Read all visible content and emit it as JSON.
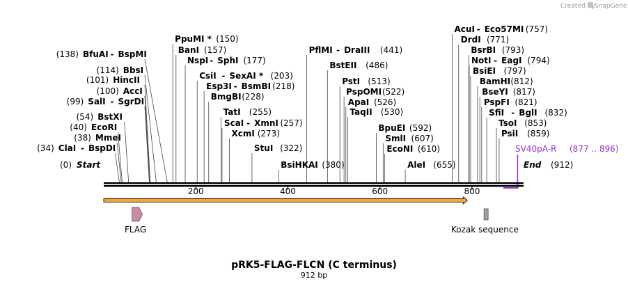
{
  "credit": {
    "prefix": "Created by",
    "brand": "SnapGene"
  },
  "map": {
    "title": "pRK5-FLAG-FLCN (C terminus)",
    "length_label": "912 bp",
    "length": 912,
    "scale_ticks": [
      {
        "pos": 200,
        "label": "200"
      },
      {
        "pos": 400,
        "label": "400"
      },
      {
        "pos": 600,
        "label": "600"
      },
      {
        "pos": 800,
        "label": "800"
      }
    ]
  },
  "ends": {
    "start": {
      "pos_text": "(0)",
      "name": "Start"
    },
    "end": {
      "pos_text": "(912)",
      "name": "End"
    }
  },
  "primer": {
    "name": "SV40pA-R",
    "range_text": "(877 .. 896)",
    "color": "#9933cc",
    "start": 877,
    "end": 896
  },
  "orf": {
    "start": 0,
    "end": 790,
    "fill": "#f2a930"
  },
  "features": [
    {
      "name": "FLAG",
      "start": 57,
      "end": 81,
      "color": "#c98c9e"
    },
    {
      "name": "Kozak sequence",
      "start": 823,
      "end": 833,
      "color": "#9aa4ab"
    }
  ],
  "enzymes": [
    {
      "pos": 34,
      "pos_text": "(34)",
      "names": [
        "ClaI",
        "BspDI"
      ],
      "side": "left"
    },
    {
      "pos": 38,
      "pos_text": "(38)",
      "names": [
        "MmeI"
      ],
      "side": "left"
    },
    {
      "pos": 40,
      "pos_text": "(40)",
      "names": [
        "EcoRI"
      ],
      "side": "left"
    },
    {
      "pos": 54,
      "pos_text": "(54)",
      "names": [
        "BstXI"
      ],
      "side": "left"
    },
    {
      "pos": 99,
      "pos_text": "(99)",
      "names": [
        "SalI",
        "SgrDI"
      ],
      "side": "left"
    },
    {
      "pos": 100,
      "pos_text": "(100)",
      "names": [
        "AccI"
      ],
      "side": "left"
    },
    {
      "pos": 101,
      "pos_text": "(101)",
      "names": [
        "HincII"
      ],
      "side": "left"
    },
    {
      "pos": 114,
      "pos_text": "(114)",
      "names": [
        "BbsI"
      ],
      "side": "left"
    },
    {
      "pos": 138,
      "pos_text": "(138)",
      "names": [
        "BfuAI",
        "BspMI"
      ],
      "side": "left"
    },
    {
      "pos": 150,
      "pos_text": "(150)",
      "names": [
        "PpuMI *"
      ],
      "side": "right"
    },
    {
      "pos": 157,
      "pos_text": "(157)",
      "names": [
        "BanI"
      ],
      "side": "right"
    },
    {
      "pos": 177,
      "pos_text": "(177)",
      "names": [
        "NspI",
        "SphI"
      ],
      "side": "right"
    },
    {
      "pos": 203,
      "pos_text": "(203)",
      "names": [
        "CsiI",
        "SexAI *"
      ],
      "side": "right"
    },
    {
      "pos": 218,
      "pos_text": "(218)",
      "names": [
        "Esp3I",
        "BsmBI"
      ],
      "side": "right"
    },
    {
      "pos": 228,
      "pos_text": "(228)",
      "names": [
        "BmgBI"
      ],
      "side": "right"
    },
    {
      "pos": 255,
      "pos_text": "(255)",
      "names": [
        "TatI"
      ],
      "side": "right"
    },
    {
      "pos": 257,
      "pos_text": "(257)",
      "names": [
        "ScaI",
        "XmnI"
      ],
      "side": "right"
    },
    {
      "pos": 273,
      "pos_text": "(273)",
      "names": [
        "XcmI"
      ],
      "side": "right"
    },
    {
      "pos": 322,
      "pos_text": "(322)",
      "names": [
        "StuI"
      ],
      "side": "right"
    },
    {
      "pos": 380,
      "pos_text": "(380)",
      "names": [
        "BsiHKAI"
      ],
      "side": "right"
    },
    {
      "pos": 441,
      "pos_text": "(441)",
      "names": [
        "PflMI",
        "DraIII"
      ],
      "side": "right"
    },
    {
      "pos": 486,
      "pos_text": "(486)",
      "names": [
        "BstEII"
      ],
      "side": "right"
    },
    {
      "pos": 513,
      "pos_text": "(513)",
      "names": [
        "PstI"
      ],
      "side": "right"
    },
    {
      "pos": 522,
      "pos_text": "(522)",
      "names": [
        "PspOMI"
      ],
      "side": "right"
    },
    {
      "pos": 526,
      "pos_text": "(526)",
      "names": [
        "ApaI"
      ],
      "side": "right"
    },
    {
      "pos": 530,
      "pos_text": "(530)",
      "names": [
        "TaqII"
      ],
      "side": "right"
    },
    {
      "pos": 592,
      "pos_text": "(592)",
      "names": [
        "BpuEI"
      ],
      "side": "right"
    },
    {
      "pos": 607,
      "pos_text": "(607)",
      "names": [
        "SmlI"
      ],
      "side": "right"
    },
    {
      "pos": 610,
      "pos_text": "(610)",
      "names": [
        "EcoNI"
      ],
      "side": "right"
    },
    {
      "pos": 655,
      "pos_text": "(655)",
      "names": [
        "AleI"
      ],
      "side": "right"
    },
    {
      "pos": 757,
      "pos_text": "(757)",
      "names": [
        "AcuI",
        "Eco57MI"
      ],
      "side": "right"
    },
    {
      "pos": 771,
      "pos_text": "(771)",
      "names": [
        "DrdI"
      ],
      "side": "right"
    },
    {
      "pos": 793,
      "pos_text": "(793)",
      "names": [
        "BsrBI"
      ],
      "side": "right"
    },
    {
      "pos": 794,
      "pos_text": "(794)",
      "names": [
        "NotI",
        "EagI"
      ],
      "side": "right"
    },
    {
      "pos": 797,
      "pos_text": "(797)",
      "names": [
        "BsiEI"
      ],
      "side": "right"
    },
    {
      "pos": 812,
      "pos_text": "(812)",
      "names": [
        "BamHI"
      ],
      "side": "right"
    },
    {
      "pos": 817,
      "pos_text": "(817)",
      "names": [
        "BseYI"
      ],
      "side": "right"
    },
    {
      "pos": 821,
      "pos_text": "(821)",
      "names": [
        "PspFI"
      ],
      "side": "right"
    },
    {
      "pos": 832,
      "pos_text": "(832)",
      "names": [
        "SfiI",
        "BglI"
      ],
      "side": "right"
    },
    {
      "pos": 853,
      "pos_text": "(853)",
      "names": [
        "TsoI"
      ],
      "side": "right"
    },
    {
      "pos": 859,
      "pos_text": "(859)",
      "names": [
        "PsiI"
      ],
      "side": "right"
    }
  ]
}
